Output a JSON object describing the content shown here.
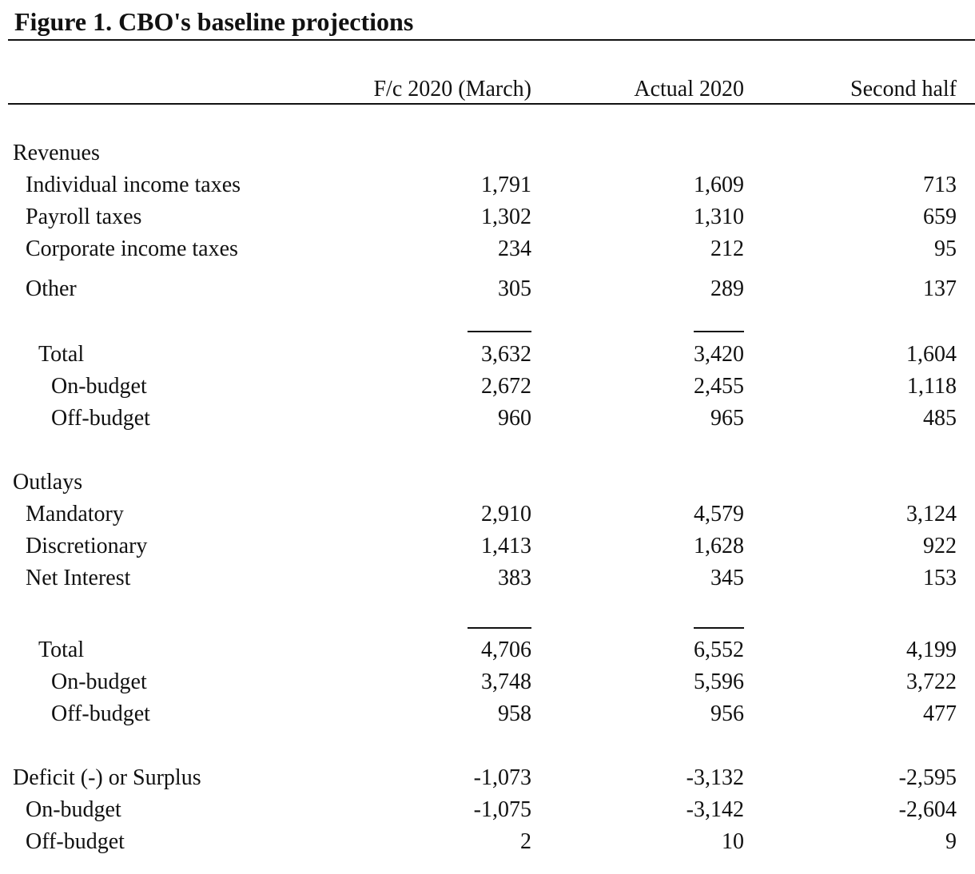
{
  "title": "Figure 1. CBO's baseline projections",
  "table": {
    "columns": [
      "F/c 2020 (March)",
      "Actual 2020",
      "Second half"
    ],
    "rows": [
      {
        "label": "Revenues"
      },
      {
        "label": "Individual income taxes",
        "values": [
          "1,791",
          "1,609",
          "713"
        ]
      },
      {
        "label": "Payroll taxes",
        "values": [
          "1,302",
          "1,310",
          "659"
        ]
      },
      {
        "label": "Corporate income taxes",
        "values": [
          "234",
          "212",
          "95"
        ]
      },
      {
        "label": "Other",
        "values": [
          "305",
          "289",
          "137"
        ]
      },
      {
        "label": "Total",
        "values": [
          "3,632",
          "3,420",
          "1,604"
        ]
      },
      {
        "label": "On-budget",
        "values": [
          "2,672",
          "2,455",
          "1,118"
        ]
      },
      {
        "label": "Off-budget",
        "values": [
          "960",
          "965",
          "485"
        ]
      },
      {
        "label": "Outlays"
      },
      {
        "label": "Mandatory",
        "values": [
          "2,910",
          "4,579",
          "3,124"
        ]
      },
      {
        "label": "Discretionary",
        "values": [
          "1,413",
          "1,628",
          "922"
        ]
      },
      {
        "label": "Net Interest",
        "values": [
          "383",
          "345",
          "153"
        ]
      },
      {
        "label": "Total",
        "values": [
          "4,706",
          "6,552",
          "4,199"
        ]
      },
      {
        "label": "On-budget",
        "values": [
          "3,748",
          "5,596",
          "3,722"
        ]
      },
      {
        "label": "Off-budget",
        "values": [
          "958",
          "956",
          "477"
        ]
      },
      {
        "label": "Deficit (-) or Surplus",
        "values": [
          "-1,073",
          "-3,132",
          "-2,595"
        ]
      },
      {
        "label": "On-budget",
        "values": [
          "-1,075",
          "-3,142",
          "-2,604"
        ]
      },
      {
        "label": "Off-budget",
        "values": [
          "2",
          "10",
          "9"
        ]
      }
    ]
  }
}
